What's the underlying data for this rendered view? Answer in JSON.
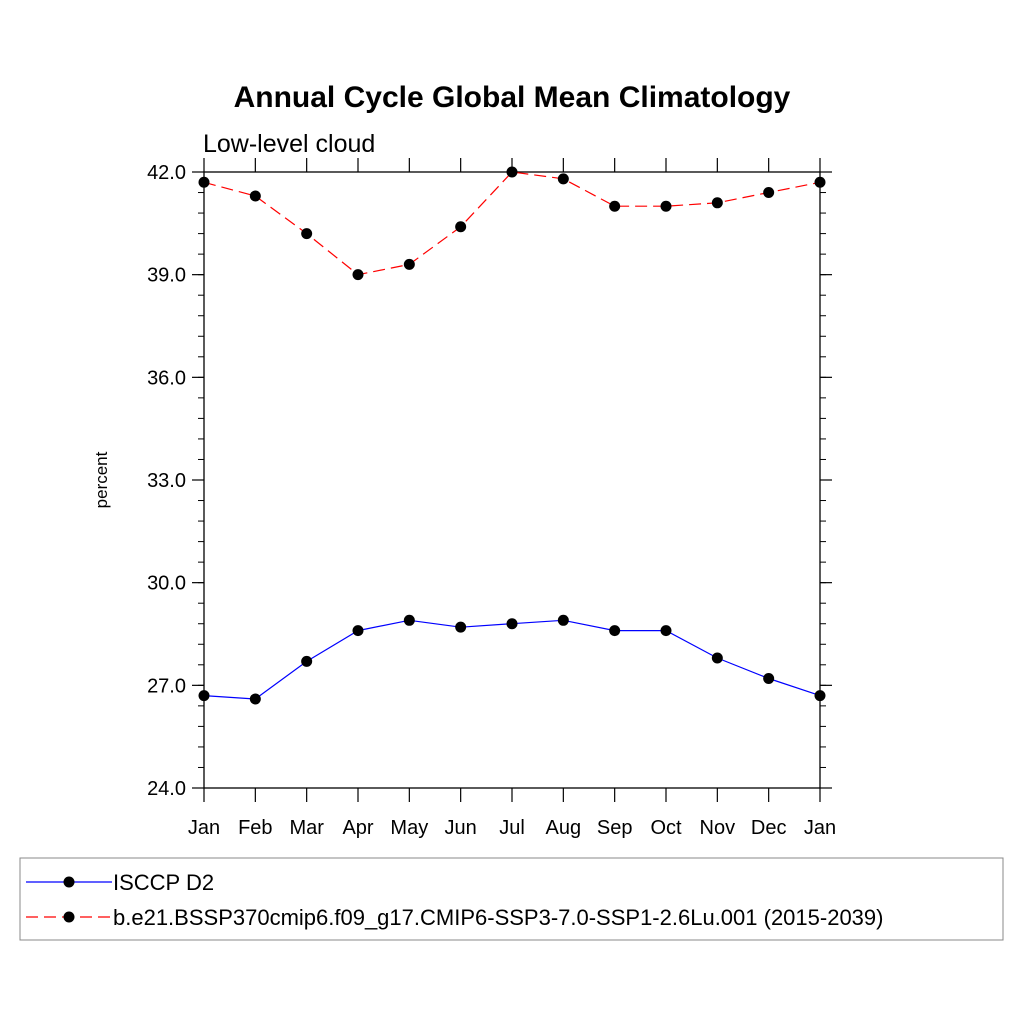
{
  "chart_data": {
    "type": "line",
    "title": "Annual Cycle Global Mean Climatology",
    "subtitle": "Low-level cloud",
    "ylabel": "percent",
    "xlabel": "",
    "ylim": [
      24.0,
      42.0
    ],
    "yticks": [
      "42.0",
      "39.0",
      "36.0",
      "33.0",
      "30.0",
      "27.0",
      "24.0"
    ],
    "categories": [
      "Jan",
      "Feb",
      "Mar",
      "Apr",
      "May",
      "Jun",
      "Jul",
      "Aug",
      "Sep",
      "Oct",
      "Nov",
      "Dec",
      "Jan"
    ],
    "grid": false,
    "legend_position": "bottom",
    "series": [
      {
        "name": "ISCCP D2",
        "color": "#0000ff",
        "dashed": false,
        "marker": "filled-circle",
        "values": [
          26.7,
          26.6,
          27.7,
          28.6,
          28.9,
          28.7,
          28.8,
          28.9,
          28.6,
          28.6,
          27.8,
          27.2,
          26.7
        ]
      },
      {
        "name": "b.e21.BSSP370cmip6.f09_g17.CMIP6-SSP3-7.0-SSP1-2.6Lu.001 (2015-2039)",
        "color": "#ff0000",
        "dashed": true,
        "marker": "filled-circle",
        "values": [
          41.7,
          41.3,
          40.2,
          39.0,
          39.3,
          40.4,
          42.0,
          41.8,
          41.0,
          41.0,
          41.1,
          41.4,
          41.7
        ]
      }
    ]
  }
}
